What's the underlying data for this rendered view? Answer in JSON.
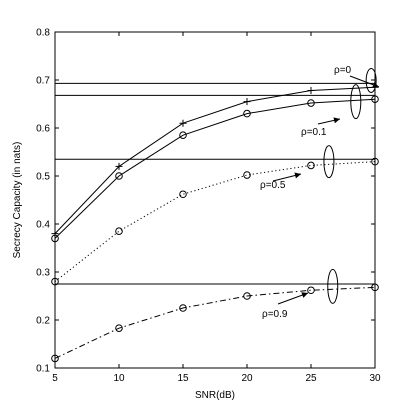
{
  "chart_data": {
    "type": "line",
    "xlabel": "SNR(dB)",
    "ylabel": "Secrecy Capacity (in nats)",
    "xlim": [
      5,
      30
    ],
    "ylim": [
      0.1,
      0.8
    ],
    "xticks": [
      5,
      10,
      15,
      20,
      25,
      30
    ],
    "yticks": [
      0.1,
      0.2,
      0.3,
      0.4,
      0.5,
      0.6,
      0.7,
      0.8
    ],
    "grid": false,
    "x": [
      5,
      10,
      15,
      20,
      25,
      30
    ],
    "series": [
      {
        "marker": "plus",
        "style": "solid",
        "values": [
          0.38,
          0.52,
          0.61,
          0.655,
          0.678,
          0.685
        ]
      },
      {
        "marker": "circle",
        "style": "solid",
        "values": [
          0.37,
          0.5,
          0.585,
          0.63,
          0.652,
          0.66
        ]
      },
      {
        "marker": "circle",
        "style": "dotted",
        "values": [
          0.28,
          0.385,
          0.462,
          0.502,
          0.522,
          0.53
        ]
      },
      {
        "marker": "circle",
        "style": "dashdot",
        "values": [
          0.12,
          0.183,
          0.225,
          0.25,
          0.262,
          0.268
        ]
      }
    ],
    "asymptotes": [
      0.693,
      0.668,
      0.535,
      0.275
    ],
    "annotations": [
      {
        "text": "ρ=0",
        "anchor_x": 29.7,
        "anchor_y": 0.697
      },
      {
        "text": "ρ=0.1",
        "anchor_x": 28.5,
        "anchor_y": 0.655
      },
      {
        "text": "ρ=0.5",
        "anchor_x": 26.4,
        "anchor_y": 0.53
      },
      {
        "text": "ρ=0.9",
        "anchor_x": 26.7,
        "anchor_y": 0.27
      }
    ]
  }
}
